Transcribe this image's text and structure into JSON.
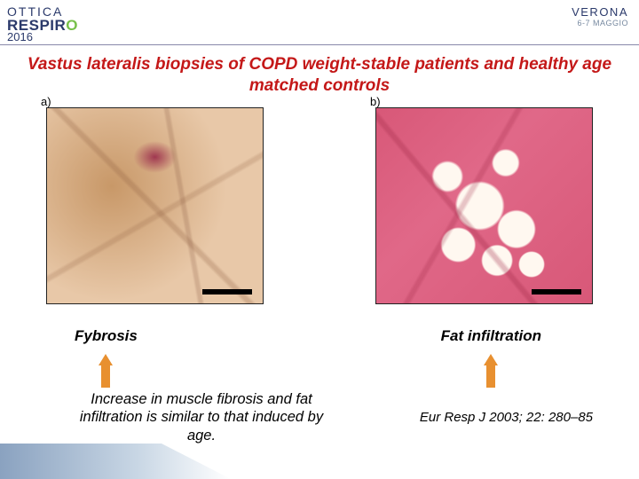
{
  "header": {
    "logo_line1": "OTTICA",
    "logo_line2_pre": "RESPIR",
    "logo_line2_hl": "O",
    "year": "2016",
    "city": "VERONA",
    "date": "6-7 MAGGIO"
  },
  "title": "Vastus lateralis biopsies of COPD weight-stable patients and healthy age matched controls",
  "panels": {
    "a": {
      "label": "a)",
      "scale_bar_color": "#000000"
    },
    "b": {
      "label": "b)",
      "scale_bar_color": "#000000"
    }
  },
  "arrows": {
    "left": {
      "label": "Fybrosis",
      "color": "#e89030"
    },
    "right": {
      "label": "Fat infiltration",
      "color": "#e89030"
    }
  },
  "conclusion": "Increase in muscle fibrosis and fat infiltration is similar to that induced by age.",
  "citation": "Eur Resp J  2003; 22: 280–85",
  "colors": {
    "title": "#c41818",
    "histology_a_base": "#e0c0a0",
    "histology_b_base": "#d85878",
    "adipocyte": "#fff8f0"
  }
}
